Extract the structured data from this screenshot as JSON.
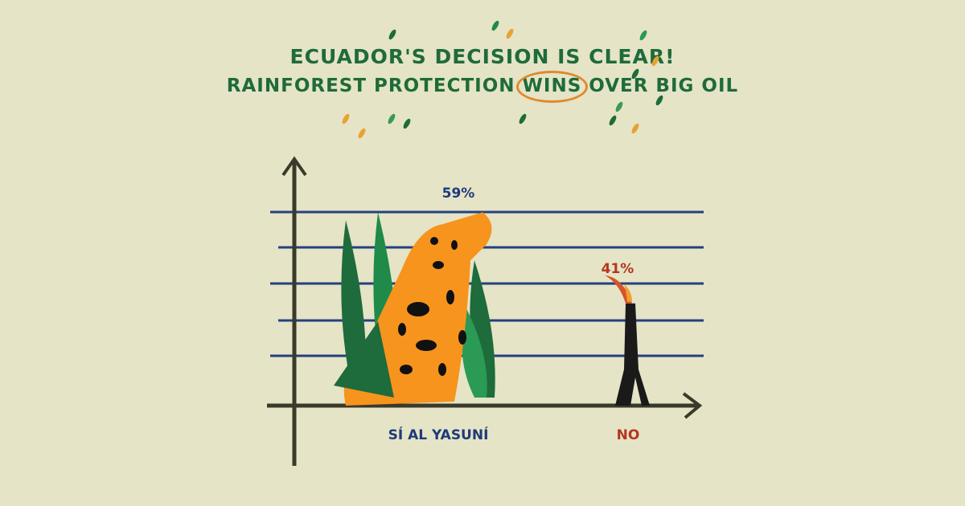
{
  "title": {
    "line1": "ECUADOR'S DECISION IS CLEAR!",
    "line2_pre": "RAINFOREST PROTECTION ",
    "line2_highlight": "WINS",
    "line2_post": " OVER BIG OIL"
  },
  "colors": {
    "background": "#e5e4c6",
    "title": "#1f6b3a",
    "yes": "#f7941d",
    "yes_label": "#1f3a7a",
    "no": "#1a1a1a",
    "no_label": "#b5361f",
    "gridline": "#24407f",
    "axis": "#3a3a2a",
    "highlight": "#e08a2e"
  },
  "chart_data": {
    "type": "bar",
    "categories": [
      "SÍ AL YASUNÍ",
      "NO"
    ],
    "values": [
      59,
      41
    ],
    "data_labels": [
      "59%",
      "41%"
    ],
    "title": "ECUADOR'S DECISION IS CLEAR! RAINFOREST PROTECTION WINS OVER BIG OIL",
    "xlabel": "",
    "ylabel": "",
    "ylim": [
      0,
      60
    ],
    "grid": true,
    "bar_icons": [
      "jaguar-with-plants",
      "oil-derrick-with-flame"
    ]
  }
}
